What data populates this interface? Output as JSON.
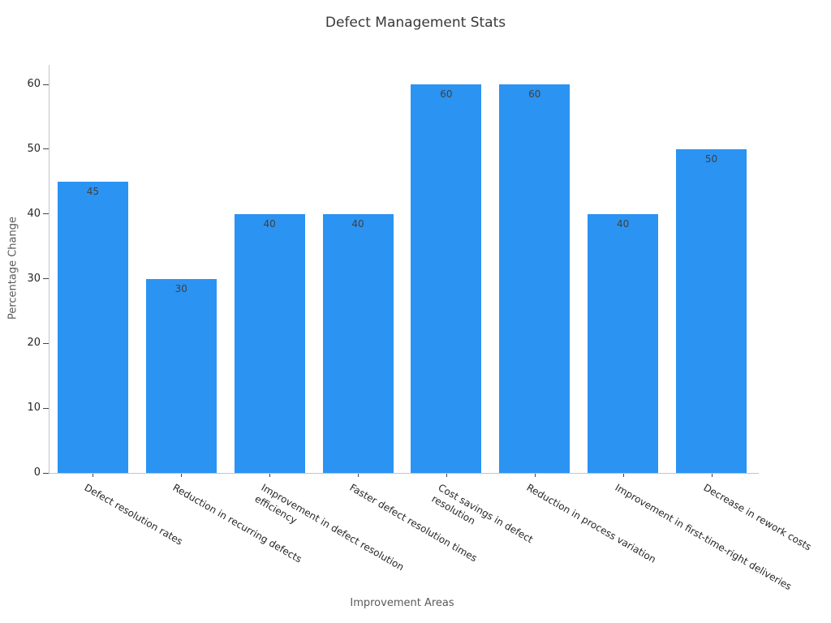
{
  "chart_data": {
    "type": "bar",
    "title": "Defect Management Stats",
    "xlabel": "Improvement Areas",
    "ylabel": "Percentage Change",
    "categories": [
      "Defect resolution rates",
      "Reduction in recurring defects",
      "Improvement in defect resolution\nefficiency",
      "Faster defect resolution times",
      "Cost savings in defect\nresolution",
      "Reduction in process variation",
      "Improvement in first-time-right deliveries",
      "Decrease in rework costs"
    ],
    "values": [
      45,
      30,
      40,
      40,
      60,
      60,
      40,
      50
    ],
    "value_labels": [
      "45",
      "30",
      "40",
      "40",
      "60",
      "60",
      "40",
      "50"
    ],
    "ylim": [
      0,
      60
    ],
    "yticks": [
      0,
      10,
      20,
      30,
      40,
      50,
      60
    ],
    "bar_color": "#2b93f2",
    "grid": false,
    "legend": null,
    "x_tick_rotation_deg": 30
  }
}
